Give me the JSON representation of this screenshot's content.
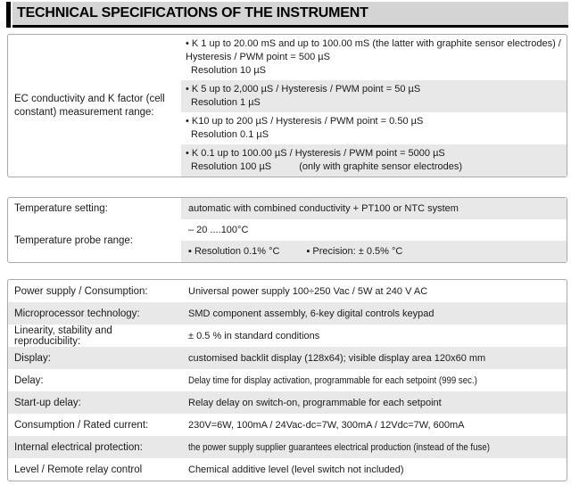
{
  "header": {
    "title": "TECHNICAL SPECIFICATIONS OF THE INSTRUMENT"
  },
  "ec_table": {
    "label": "EC conductivity and K factor (cell constant) measurement range:",
    "rows": [
      {
        "line1": "• K 1 up to 20.00 mS and up to 100.00 mS (the latter with graphite sensor electrodes) /",
        "line2": "Hysteresis / PWM point = 500 µS",
        "line3": "Resolution 10 µS"
      },
      {
        "line1": "• K 5 up to 2,000 µS / Hysteresis / PWM point = 50 µS",
        "line2": "Resolution 1 µS"
      },
      {
        "line1": "• K10 up to 200 µS / Hysteresis / PWM point = 0.50 µS",
        "line2": "Resolution 0.1 µS"
      },
      {
        "line1": "• K 0.1 up to 100.00 µS / Hysteresis / PWM point = 5000 µS",
        "line2": "Resolution 100 µS",
        "note": "(only with graphite sensor electrodes)"
      }
    ]
  },
  "temperature_table": {
    "setting_label": "Temperature setting:",
    "setting_value": "automatic with combined conductivity + PT100 or NTC system",
    "probe_label": "Temperature probe range:",
    "probe_range": "– 20 ....100°C",
    "probe_resolution": "▪  Resolution  0.1% °C",
    "probe_precision": "▪  Precision: ± 0.5% °C"
  },
  "general_table": {
    "rows": [
      {
        "label": "Power supply / Consumption:",
        "value": "Universal power supply 100÷250 Vac / 5W at 240 V AC"
      },
      {
        "label": "Microprocessor technology:",
        "value": "SMD component assembly, 6-key digital controls keypad"
      },
      {
        "label": "Linearity, stability and reproducibility:",
        "value": "± 0.5 % in standard conditions"
      },
      {
        "label": "Display:",
        "value": "customised backlit display (128x64); visible display area 120x60 mm"
      },
      {
        "label": "Delay:",
        "value": "Delay time for display activation, programmable for each setpoint (999 sec.)"
      },
      {
        "label": "Start-up delay:",
        "value": "Relay delay on switch-on, programmable for each setpoint"
      },
      {
        "label": "Consumption / Rated current:",
        "value": "230V=6W, 100mA / 24Vac-dc=7W, 300mA / 12Vdc=7W, 600mA"
      },
      {
        "label": "Internal electrical protection:",
        "value": "the power supply supplier guarantees electrical production (instead of the fuse)"
      },
      {
        "label": "Level / Remote relay control",
        "value": "Chemical additive level (level switch not included)"
      }
    ]
  },
  "colors": {
    "header_band": "#d4d4d4",
    "shaded_row": "#e8e8e8",
    "table_border": "#a9a9a9",
    "text": "#1a1a1a"
  }
}
